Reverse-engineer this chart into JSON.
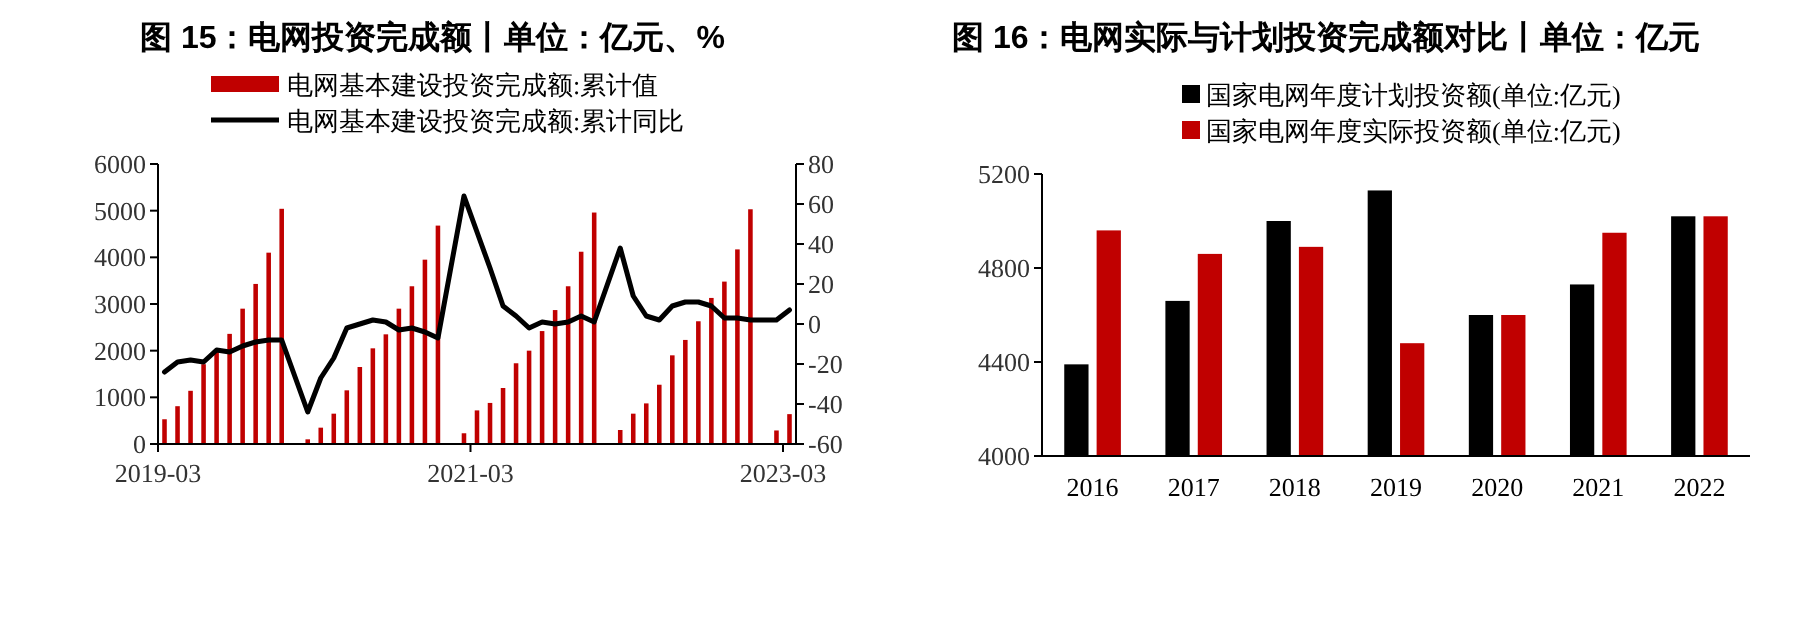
{
  "chart_data": [
    {
      "type": "bar",
      "title": "图 15：电网投资完成额丨单位：亿元、%",
      "legend": "top",
      "x": [
        "2019-03-16",
        "2019-04-16",
        "2019-05-16",
        "2019-06-16",
        "2019-07-16",
        "2019-08-16",
        "2019-09-16",
        "2019-10-16",
        "2019-11-16",
        "2019-12-16",
        "2020-02-16",
        "2020-03-16",
        "2020-04-16",
        "2020-05-16",
        "2020-06-16",
        "2020-07-16",
        "2020-08-16",
        "2020-09-16",
        "2020-10-16",
        "2020-11-16",
        "2020-12-16",
        "2021-02-16",
        "2021-03-16",
        "2021-04-16",
        "2021-05-16",
        "2021-06-16",
        "2021-07-16",
        "2021-08-16",
        "2021-09-16",
        "2021-10-16",
        "2021-11-16",
        "2021-12-16",
        "2022-02-16",
        "2022-03-16",
        "2022-04-16",
        "2022-05-16",
        "2022-06-16",
        "2022-07-16",
        "2022-08-16",
        "2022-09-16",
        "2022-10-16",
        "2022-11-16",
        "2022-12-16",
        "2023-02-16",
        "2023-03-16"
      ],
      "xlim": [
        "2019-03",
        "2023-04"
      ],
      "xticks": [
        "2019-03",
        "2021-03",
        "2023-03"
      ],
      "ylim": [
        0,
        6000
      ],
      "yticks": [
        0,
        1000,
        2000,
        3000,
        4000,
        5000,
        6000
      ],
      "y2lim": [
        -60,
        80
      ],
      "y2ticks": [
        -60,
        -40,
        -20,
        0,
        20,
        40,
        60,
        80
      ],
      "series": [
        {
          "name": "电网基本建设投资完成额:累计值",
          "type": "bar",
          "color": "#c00000",
          "values": [
            530,
            810,
            1140,
            1710,
            2000,
            2360,
            2900,
            3430,
            4100,
            5040,
            100,
            350,
            650,
            1150,
            1650,
            2050,
            2350,
            2900,
            3380,
            3950,
            4680,
            230,
            720,
            880,
            1200,
            1730,
            2000,
            2420,
            2870,
            3380,
            4120,
            4960,
            300,
            650,
            870,
            1270,
            1900,
            2230,
            2630,
            3130,
            3480,
            4170,
            5030,
            290,
            640
          ]
        },
        {
          "name": "电网基本建设投资完成额:累计同比",
          "type": "line",
          "axis": "y2",
          "color": "#000000",
          "values": [
            -24,
            -19,
            -18,
            -19,
            -13,
            -14,
            -11,
            -9,
            -8,
            -8,
            -44,
            -27,
            -17,
            -2,
            0,
            2,
            1,
            -3,
            -2,
            -4,
            -7,
            64,
            46,
            28,
            9,
            4,
            -2,
            1,
            0,
            1,
            4,
            1,
            38,
            14,
            4,
            2,
            9,
            11,
            11,
            9,
            3,
            3,
            2,
            2,
            7
          ]
        }
      ]
    },
    {
      "type": "bar",
      "title": "图 16：电网实际与计划投资完成额对比丨单位：亿元",
      "legend": "top",
      "categories": [
        "2016",
        "2017",
        "2018",
        "2019",
        "2020",
        "2021",
        "2022"
      ],
      "ylim": [
        4000,
        5200
      ],
      "yticks": [
        4000,
        4400,
        4800,
        5200
      ],
      "series": [
        {
          "name": "国家电网年度计划投资额(单位:亿元)",
          "color": "#000000",
          "values": [
            4390,
            4660,
            5000,
            5130,
            4600,
            4730,
            5020
          ]
        },
        {
          "name": "国家电网年度实际投资额(单位:亿元)",
          "color": "#c00000",
          "values": [
            4960,
            4860,
            4890,
            4480,
            4600,
            4950,
            5020
          ]
        }
      ]
    }
  ]
}
